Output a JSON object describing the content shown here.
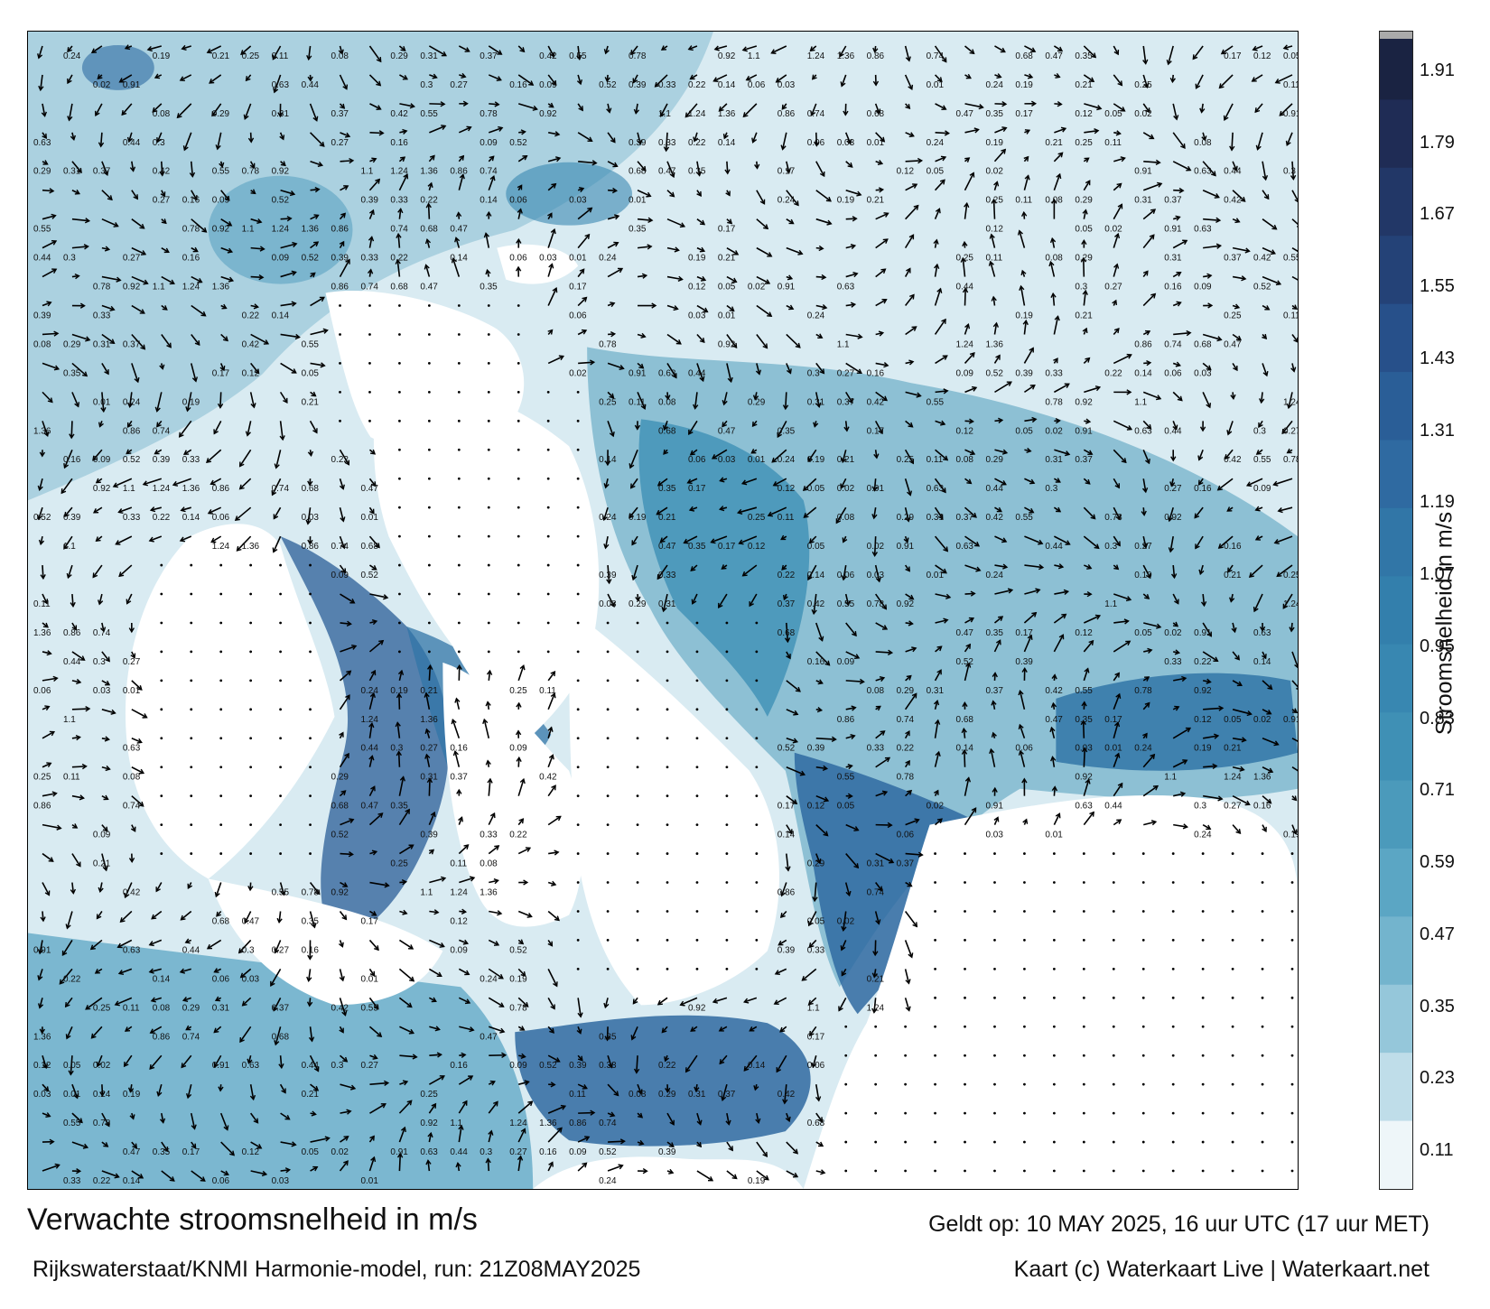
{
  "title": "Verwachte stroomsnelheid in m/s",
  "subtitle": "Rijkswaterstaat/KNMI Harmonie-model, run: 21Z08MAY2025",
  "valid_time": "Geldt op: 10 MAY 2025, 16 uur UTC (17 uur MET)",
  "credit": "Kaart (c) Waterkaart Live | Waterkaart.net",
  "colorbar": {
    "title": "Stroomsnelheid in m/s",
    "ticks": [
      "1.91",
      "1.79",
      "1.67",
      "1.55",
      "1.43",
      "1.31",
      "1.19",
      "1.07",
      "0.95",
      "0.83",
      "0.71",
      "0.59",
      "0.47",
      "0.35",
      "0.23",
      "0.11"
    ],
    "colors": [
      "#1a2342",
      "#1f2c55",
      "#223767",
      "#244277",
      "#27508a",
      "#2a5e97",
      "#2f6aa1",
      "#3176a7",
      "#337fac",
      "#3887b1",
      "#3f90b5",
      "#4b9abb",
      "#5ba6c4",
      "#73b4cd",
      "#95c7da",
      "#bfdde9",
      "#eef6f9"
    ]
  },
  "map": {
    "land_color": "#ffffff",
    "sea_light": "#cfe5ef",
    "sea_mid": "#7fb8cf",
    "sea_dark": "#3a87ad",
    "sea_deep": "#2a5f90",
    "arrow_color": "#000000",
    "speed_labels": [
      "0.24",
      "0.19",
      "0.21",
      "0.25",
      "0.11",
      "0.08",
      "0.29",
      "0.31",
      "0.37",
      "0.42",
      "0.55",
      "0.78",
      "0.92",
      "1.1",
      "1.24",
      "1.36",
      "0.86",
      "0.74",
      "0.68",
      "0.47",
      "0.35",
      "0.17",
      "0.12",
      "0.05",
      "0.02",
      "0.91",
      "0.63",
      "0.44",
      "0.3",
      "0.27",
      "0.16",
      "0.09",
      "0.52",
      "0.39",
      "0.33",
      "0.22",
      "0.14",
      "0.06",
      "0.03",
      "0.01"
    ]
  }
}
